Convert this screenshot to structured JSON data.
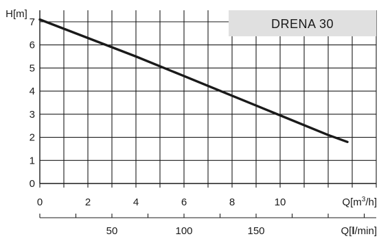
{
  "chart_data": {
    "type": "line",
    "title": "DRENA 30",
    "ylabel": "H[m]",
    "xlabel_primary_prefix": "Q[m",
    "xlabel_primary_sup": "3",
    "xlabel_primary_suffix": "/h]",
    "xlabel_secondary_prefix": "Q[",
    "xlabel_secondary_bold": "l",
    "xlabel_secondary_suffix": "/min]",
    "ylim": [
      0,
      7.5
    ],
    "xlim": [
      0,
      14
    ],
    "y_ticks": [
      0,
      1,
      2,
      3,
      4,
      5,
      6,
      7
    ],
    "x_ticks": [
      0,
      2,
      4,
      6,
      8,
      10
    ],
    "x_secondary_ticks": [
      50,
      100,
      150
    ],
    "grid": true,
    "legend": "none",
    "series": [
      {
        "x": [
          0,
          2,
          4,
          6,
          8,
          10,
          12,
          12.8
        ],
        "y": [
          7.1,
          6.3,
          5.5,
          4.65,
          3.8,
          2.95,
          2.1,
          1.8
        ]
      }
    ]
  },
  "colors": {
    "curve": "#1a1a1a",
    "grid": "#1a1a1a",
    "badge_bg": "#e0e0e0"
  }
}
